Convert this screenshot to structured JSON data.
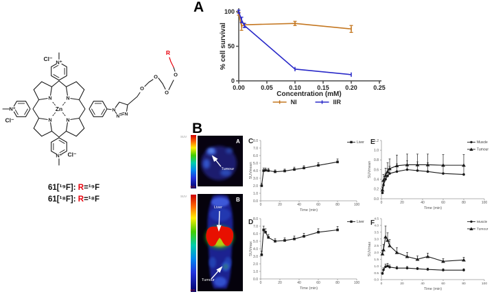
{
  "panels": {
    "a": "A",
    "b": "B",
    "c": "C",
    "d": "D",
    "e": "E",
    "f": "F"
  },
  "structure": {
    "atoms": {
      "zn": "Zn",
      "n": "N",
      "n_plus": "N⁺",
      "cl": "Cl⁻",
      "o": "O",
      "r": "R"
    },
    "labels": [
      {
        "pre": "61[¹⁹F]: ",
        "r": "R",
        "post": "=¹⁹F"
      },
      {
        "pre": "61[¹⁸F]: ",
        "r": "R",
        "post": "=¹⁸F"
      }
    ],
    "r_color": "#e8000b"
  },
  "images": {
    "colorbar_label": "SUV",
    "colorbar_min": "0.0",
    "axial": {
      "letter": "A",
      "tumour": "Tumour"
    },
    "coronal": {
      "letter": "B",
      "liver": "Liver",
      "tumour": "Tumour"
    }
  },
  "chart_data": [
    {
      "id": "A",
      "type": "line",
      "title": "",
      "xlabel": "Concentration (mM)",
      "ylabel": "% cell survival",
      "xlim": [
        0,
        0.25
      ],
      "ylim": [
        0,
        100
      ],
      "xticks": [
        0,
        0.05,
        0.1,
        0.15,
        0.2,
        0.25
      ],
      "xtick_labels": [
        "0.00",
        "0.05",
        "0.10",
        "0.15",
        "0.20",
        "0.25"
      ],
      "yticks": [
        0,
        50,
        100
      ],
      "ytick_labels": [
        "0",
        "50",
        "100"
      ],
      "legend_position": "bottom",
      "err_dir": "both",
      "series": [
        {
          "name": "NI",
          "color": "#c4761f",
          "marker": "vtick",
          "x": [
            0,
            0.005,
            0.01,
            0.1,
            0.2
          ],
          "y": [
            97,
            79,
            81,
            83,
            75
          ],
          "err": [
            2,
            6,
            0,
            3,
            5
          ]
        },
        {
          "name": "IIR",
          "color": "#2828c8",
          "marker": "vtick",
          "x": [
            0,
            0.005,
            0.01,
            0.1,
            0.2
          ],
          "y": [
            100,
            88,
            80,
            17,
            9
          ],
          "err": [
            2,
            4,
            3,
            0,
            0
          ]
        }
      ]
    },
    {
      "id": "C",
      "type": "line",
      "xlabel": "Time (min)",
      "ylabel": "SUVmean",
      "xlim": [
        0,
        100
      ],
      "ylim": [
        0,
        8
      ],
      "xticks": [
        0,
        20,
        40,
        60,
        80,
        100
      ],
      "xtick_labels": [
        "0",
        "20",
        "40",
        "60",
        "80",
        "100"
      ],
      "yticks": [
        0,
        1,
        2,
        3,
        4,
        5,
        6,
        7,
        8
      ],
      "ytick_labels": [
        "0.0",
        "1.0",
        "2.0",
        "3.0",
        "4.0",
        "5.0",
        "6.0",
        "7.0",
        "8.0"
      ],
      "legend_position": "top-right",
      "err_dir": "up",
      "series": [
        {
          "name": "Liver",
          "color": "#1a1a1a",
          "marker": "square",
          "x": [
            1,
            3,
            5,
            8,
            15,
            25,
            35,
            45,
            60,
            80
          ],
          "y": [
            2.0,
            4.0,
            4.05,
            4.0,
            3.85,
            3.95,
            4.15,
            4.35,
            4.7,
            5.15
          ],
          "err": [
            0.3,
            0.35,
            0.3,
            0.3,
            0.25,
            0.25,
            0.3,
            0.3,
            0.35,
            0.4
          ]
        }
      ]
    },
    {
      "id": "D",
      "type": "line",
      "xlabel": "Time (min)",
      "ylabel": "SUVmax",
      "xlim": [
        0,
        100
      ],
      "ylim": [
        0,
        8
      ],
      "xticks": [
        0,
        20,
        40,
        60,
        80,
        100
      ],
      "xtick_labels": [
        "0",
        "20",
        "40",
        "60",
        "80",
        "100"
      ],
      "yticks": [
        0,
        1,
        2,
        3,
        4,
        5,
        6,
        7,
        8
      ],
      "ytick_labels": [
        "0.0",
        "1.0",
        "2.0",
        "3.0",
        "4.0",
        "5.0",
        "6.0",
        "7.0",
        "8.0"
      ],
      "legend_position": "top-right",
      "err_dir": "up",
      "series": [
        {
          "name": "Liver",
          "color": "#1a1a1a",
          "marker": "square",
          "x": [
            1,
            3,
            5,
            8,
            15,
            25,
            35,
            45,
            60,
            80
          ],
          "y": [
            3.2,
            6.5,
            6.2,
            5.5,
            5.0,
            5.1,
            5.3,
            5.65,
            6.2,
            6.5
          ],
          "err": [
            0.5,
            0.5,
            0.45,
            0.4,
            0.35,
            0.35,
            0.4,
            0.4,
            0.45,
            0.45
          ]
        }
      ]
    },
    {
      "id": "E",
      "type": "line",
      "xlabel": "Time (min)",
      "ylabel": "SUVmean",
      "xlim": [
        0,
        100
      ],
      "ylim": [
        0,
        1.2
      ],
      "xticks": [
        0,
        20,
        40,
        60,
        80,
        100
      ],
      "xtick_labels": [
        "0",
        "20",
        "40",
        "60",
        "80",
        "100"
      ],
      "yticks": [
        0,
        0.2,
        0.4,
        0.6,
        0.8,
        1.0,
        1.2
      ],
      "ytick_labels": [
        "0.0",
        "0.2",
        "0.4",
        "0.6",
        "0.8",
        "1.0",
        "1.2"
      ],
      "legend_position": "top-right",
      "err_dir": "up",
      "series": [
        {
          "name": "Muscle",
          "color": "#1a1a1a",
          "marker": "circle",
          "x": [
            1,
            2,
            4,
            6,
            8,
            15,
            25,
            35,
            45,
            60,
            80
          ],
          "y": [
            0.12,
            0.28,
            0.4,
            0.47,
            0.52,
            0.56,
            0.6,
            0.58,
            0.56,
            0.52,
            0.5
          ],
          "err": [
            0.05,
            0.1,
            0.12,
            0.15,
            0.15,
            0.16,
            0.18,
            0.18,
            0.18,
            0.18,
            0.18
          ]
        },
        {
          "name": "Tumour",
          "color": "#1a1a1a",
          "marker": "triangle",
          "x": [
            1,
            2,
            4,
            6,
            8,
            15,
            25,
            35,
            45,
            60,
            80
          ],
          "y": [
            0.18,
            0.38,
            0.48,
            0.56,
            0.62,
            0.68,
            0.7,
            0.7,
            0.7,
            0.69,
            0.69
          ],
          "err": [
            0.06,
            0.12,
            0.15,
            0.18,
            0.2,
            0.22,
            0.22,
            0.22,
            0.22,
            0.22,
            0.22
          ]
        }
      ]
    },
    {
      "id": "F",
      "type": "line",
      "xlabel": "Time (min)",
      "ylabel": "SUVmax",
      "xlim": [
        0,
        100
      ],
      "ylim": [
        0,
        4.5
      ],
      "xticks": [
        0,
        20,
        40,
        60,
        80,
        100
      ],
      "xtick_labels": [
        "0",
        "20",
        "40",
        "60",
        "80",
        "100"
      ],
      "yticks": [
        0,
        0.5,
        1,
        1.5,
        2,
        2.5,
        3,
        3.5,
        4,
        4.5
      ],
      "ytick_labels": [
        "0.0",
        "0.5",
        "1.0",
        "1.5",
        "2.0",
        "2.5",
        "3.0",
        "3.5",
        "4.0",
        "4.5"
      ],
      "legend_position": "top-right",
      "err_dir": "up",
      "series": [
        {
          "name": "Muscle",
          "color": "#1a1a1a",
          "marker": "circle",
          "x": [
            1,
            2,
            4,
            6,
            8,
            15,
            25,
            35,
            45,
            60,
            80
          ],
          "y": [
            0.45,
            0.72,
            0.95,
            1.0,
            0.92,
            0.85,
            0.85,
            0.8,
            0.75,
            0.7,
            0.7
          ],
          "err": [
            0.08,
            0.15,
            0.2,
            0.2,
            0.15,
            0.12,
            0.12,
            0.1,
            0.1,
            0.1,
            0.1
          ]
        },
        {
          "name": "Tumour",
          "color": "#1a1a1a",
          "marker": "triangle",
          "x": [
            1,
            2,
            4,
            6,
            8,
            15,
            25,
            35,
            45,
            60,
            80
          ],
          "y": [
            1.9,
            2.2,
            3.15,
            2.9,
            2.5,
            2.0,
            1.7,
            1.5,
            1.7,
            1.35,
            1.45
          ],
          "err": [
            0.25,
            0.4,
            0.8,
            0.55,
            0.45,
            0.35,
            0.3,
            0.25,
            0.25,
            0.2,
            0.2
          ]
        }
      ]
    }
  ]
}
